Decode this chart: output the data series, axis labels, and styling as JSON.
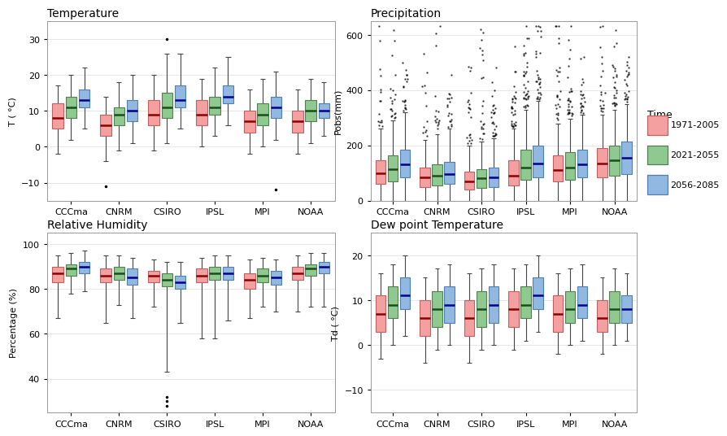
{
  "models": [
    "CCCma",
    "CNRM",
    "CSIRO",
    "IPSL",
    "MPI",
    "NOAA"
  ],
  "time_periods": [
    "1971-2005",
    "2021-2055",
    "2056-2085"
  ],
  "colors": [
    "#F4A0A0",
    "#90C990",
    "#90B8E0"
  ],
  "edge_colors": [
    "#C06060",
    "#508050",
    "#5080B0"
  ],
  "median_colors": [
    "#8B0000",
    "#1a4d1a",
    "#00008B"
  ],
  "temp": {
    "title": "Temperature",
    "ylabel": "T ( °C)",
    "ylim": [
      -15,
      35
    ],
    "yticks": [
      -10,
      0,
      10,
      20,
      30
    ],
    "data": {
      "CCCma": [
        {
          "q1": 5,
          "median": 8,
          "q3": 12,
          "whislo": -2,
          "whishi": 17,
          "fliers": []
        },
        {
          "q1": 8,
          "median": 11,
          "q3": 14,
          "whislo": 2,
          "whishi": 20,
          "fliers": []
        },
        {
          "q1": 11,
          "median": 13,
          "q3": 16,
          "whislo": 5,
          "whishi": 22,
          "fliers": []
        }
      ],
      "CNRM": [
        {
          "q1": 3,
          "median": 6,
          "q3": 9,
          "whislo": -4,
          "whishi": 14,
          "fliers": [
            -11
          ]
        },
        {
          "q1": 6,
          "median": 9,
          "q3": 11,
          "whislo": -1,
          "whishi": 18,
          "fliers": []
        },
        {
          "q1": 7,
          "median": 10,
          "q3": 13,
          "whislo": 1,
          "whishi": 20,
          "fliers": []
        }
      ],
      "CSIRO": [
        {
          "q1": 6,
          "median": 9,
          "q3": 13,
          "whislo": -1,
          "whishi": 20,
          "fliers": []
        },
        {
          "q1": 8,
          "median": 11,
          "q3": 15,
          "whislo": 1,
          "whishi": 26,
          "fliers": [
            30
          ]
        },
        {
          "q1": 11,
          "median": 13,
          "q3": 17,
          "whislo": 5,
          "whishi": 26,
          "fliers": []
        }
      ],
      "IPSL": [
        {
          "q1": 6,
          "median": 9,
          "q3": 13,
          "whislo": 0,
          "whishi": 19,
          "fliers": []
        },
        {
          "q1": 9,
          "median": 11,
          "q3": 14,
          "whislo": 3,
          "whishi": 22,
          "fliers": []
        },
        {
          "q1": 12,
          "median": 14,
          "q3": 17,
          "whislo": 6,
          "whishi": 25,
          "fliers": []
        }
      ],
      "MPI": [
        {
          "q1": 4,
          "median": 7,
          "q3": 10,
          "whislo": -2,
          "whishi": 16,
          "fliers": []
        },
        {
          "q1": 6,
          "median": 9,
          "q3": 12,
          "whislo": 0,
          "whishi": 19,
          "fliers": []
        },
        {
          "q1": 8,
          "median": 11,
          "q3": 14,
          "whislo": 2,
          "whishi": 21,
          "fliers": [
            -12
          ]
        }
      ],
      "NOAA": [
        {
          "q1": 4,
          "median": 7,
          "q3": 10,
          "whislo": -2,
          "whishi": 16,
          "fliers": []
        },
        {
          "q1": 7,
          "median": 10,
          "q3": 13,
          "whislo": 1,
          "whishi": 19,
          "fliers": []
        },
        {
          "q1": 8,
          "median": 10,
          "q3": 12,
          "whislo": 3,
          "whishi": 18,
          "fliers": []
        }
      ]
    }
  },
  "precip": {
    "title": "Precipitation",
    "ylabel": "Pobs(mm)",
    "ylim": [
      0,
      650
    ],
    "yticks": [
      0,
      200,
      400,
      600
    ],
    "data": {
      "CCCma": [
        {
          "q1": 60,
          "median": 100,
          "q3": 145,
          "whislo": 0,
          "whishi": 260,
          "fliers_count": 15
        },
        {
          "q1": 70,
          "median": 115,
          "q3": 165,
          "whislo": 0,
          "whishi": 290,
          "fliers_count": 20
        },
        {
          "q1": 85,
          "median": 130,
          "q3": 185,
          "whislo": 0,
          "whishi": 320,
          "fliers_count": 18
        }
      ],
      "CNRM": [
        {
          "q1": 50,
          "median": 85,
          "q3": 120,
          "whislo": 0,
          "whishi": 220,
          "fliers_count": 12
        },
        {
          "q1": 55,
          "median": 90,
          "q3": 130,
          "whislo": 0,
          "whishi": 240,
          "fliers_count": 15
        },
        {
          "q1": 60,
          "median": 95,
          "q3": 140,
          "whislo": 0,
          "whishi": 260,
          "fliers_count": 18
        }
      ],
      "CSIRO": [
        {
          "q1": 40,
          "median": 70,
          "q3": 105,
          "whislo": 0,
          "whishi": 200,
          "fliers_count": 20
        },
        {
          "q1": 45,
          "median": 80,
          "q3": 115,
          "whislo": 0,
          "whishi": 215,
          "fliers_count": 22
        },
        {
          "q1": 50,
          "median": 85,
          "q3": 120,
          "whislo": 0,
          "whishi": 225,
          "fliers_count": 25
        }
      ],
      "IPSL": [
        {
          "q1": 55,
          "median": 90,
          "q3": 145,
          "whislo": 0,
          "whishi": 260,
          "fliers_count": 30
        },
        {
          "q1": 75,
          "median": 120,
          "q3": 185,
          "whislo": 0,
          "whishi": 330,
          "fliers_count": 35
        },
        {
          "q1": 85,
          "median": 135,
          "q3": 200,
          "whislo": 0,
          "whishi": 360,
          "fliers_count": 30
        }
      ],
      "MPI": [
        {
          "q1": 70,
          "median": 110,
          "q3": 165,
          "whislo": 0,
          "whishi": 280,
          "fliers_count": 25
        },
        {
          "q1": 75,
          "median": 120,
          "q3": 175,
          "whislo": 0,
          "whishi": 295,
          "fliers_count": 28
        },
        {
          "q1": 85,
          "median": 130,
          "q3": 185,
          "whislo": 0,
          "whishi": 310,
          "fliers_count": 22
        }
      ],
      "NOAA": [
        {
          "q1": 85,
          "median": 135,
          "q3": 190,
          "whislo": 0,
          "whishi": 310,
          "fliers_count": 20
        },
        {
          "q1": 90,
          "median": 145,
          "q3": 200,
          "whislo": 0,
          "whishi": 330,
          "fliers_count": 25
        },
        {
          "q1": 95,
          "median": 155,
          "q3": 215,
          "whislo": 0,
          "whishi": 350,
          "fliers_count": 22
        }
      ]
    }
  },
  "humidity": {
    "title": "Relative Humidity",
    "ylabel": "Percentage (%)",
    "ylim": [
      25,
      105
    ],
    "yticks": [
      40,
      60,
      80,
      100
    ],
    "data": {
      "CCCma": [
        {
          "q1": 83,
          "median": 87,
          "q3": 90,
          "whislo": 67,
          "whishi": 95,
          "fliers": []
        },
        {
          "q1": 86,
          "median": 89,
          "q3": 91,
          "whislo": 78,
          "whishi": 96,
          "fliers": []
        },
        {
          "q1": 87,
          "median": 90,
          "q3": 92,
          "whislo": 79,
          "whishi": 97,
          "fliers": []
        }
      ],
      "CNRM": [
        {
          "q1": 83,
          "median": 86,
          "q3": 89,
          "whislo": 65,
          "whishi": 95,
          "fliers": []
        },
        {
          "q1": 84,
          "median": 87,
          "q3": 90,
          "whislo": 73,
          "whishi": 95,
          "fliers": []
        },
        {
          "q1": 82,
          "median": 85,
          "q3": 89,
          "whislo": 67,
          "whishi": 94,
          "fliers": []
        }
      ],
      "CSIRO": [
        {
          "q1": 83,
          "median": 86,
          "q3": 88,
          "whislo": 72,
          "whishi": 93,
          "fliers": []
        },
        {
          "q1": 81,
          "median": 84,
          "q3": 87,
          "whislo": 43,
          "whishi": 92,
          "fliers": [
            28,
            30,
            32
          ]
        },
        {
          "q1": 80,
          "median": 83,
          "q3": 86,
          "whislo": 65,
          "whishi": 92,
          "fliers": []
        }
      ],
      "IPSL": [
        {
          "q1": 83,
          "median": 86,
          "q3": 89,
          "whislo": 58,
          "whishi": 94,
          "fliers": []
        },
        {
          "q1": 84,
          "median": 87,
          "q3": 90,
          "whislo": 58,
          "whishi": 95,
          "fliers": []
        },
        {
          "q1": 84,
          "median": 87,
          "q3": 90,
          "whislo": 66,
          "whishi": 95,
          "fliers": []
        }
      ],
      "MPI": [
        {
          "q1": 80,
          "median": 84,
          "q3": 87,
          "whislo": 67,
          "whishi": 93,
          "fliers": []
        },
        {
          "q1": 83,
          "median": 86,
          "q3": 89,
          "whislo": 72,
          "whishi": 94,
          "fliers": []
        },
        {
          "q1": 82,
          "median": 85,
          "q3": 88,
          "whislo": 70,
          "whishi": 93,
          "fliers": []
        }
      ],
      "NOAA": [
        {
          "q1": 84,
          "median": 87,
          "q3": 90,
          "whislo": 70,
          "whishi": 95,
          "fliers": []
        },
        {
          "q1": 86,
          "median": 89,
          "q3": 91,
          "whislo": 72,
          "whishi": 96,
          "fliers": []
        },
        {
          "q1": 87,
          "median": 90,
          "q3": 92,
          "whislo": 72,
          "whishi": 96,
          "fliers": []
        }
      ]
    }
  },
  "dewpoint": {
    "title": "Dew point Temperature",
    "ylabel": "Td ( °C)",
    "ylim": [
      -15,
      25
    ],
    "yticks": [
      -10,
      0,
      10,
      20
    ],
    "data": {
      "CCCma": [
        {
          "q1": 3,
          "median": 7,
          "q3": 11,
          "whislo": -3,
          "whishi": 16,
          "fliers": []
        },
        {
          "q1": 6,
          "median": 9,
          "q3": 13,
          "whislo": 0,
          "whishi": 18,
          "fliers": []
        },
        {
          "q1": 8,
          "median": 11,
          "q3": 15,
          "whislo": 2,
          "whishi": 20,
          "fliers": []
        }
      ],
      "CNRM": [
        {
          "q1": 2,
          "median": 6,
          "q3": 10,
          "whislo": -4,
          "whishi": 15,
          "fliers": []
        },
        {
          "q1": 4,
          "median": 8,
          "q3": 12,
          "whislo": -1,
          "whishi": 17,
          "fliers": []
        },
        {
          "q1": 5,
          "median": 9,
          "q3": 13,
          "whislo": 0,
          "whishi": 18,
          "fliers": []
        }
      ],
      "CSIRO": [
        {
          "q1": 2,
          "median": 6,
          "q3": 10,
          "whislo": -4,
          "whishi": 16,
          "fliers": []
        },
        {
          "q1": 4,
          "median": 8,
          "q3": 12,
          "whislo": -1,
          "whishi": 17,
          "fliers": []
        },
        {
          "q1": 5,
          "median": 9,
          "q3": 13,
          "whislo": 0,
          "whishi": 18,
          "fliers": []
        }
      ],
      "IPSL": [
        {
          "q1": 4,
          "median": 8,
          "q3": 12,
          "whislo": -1,
          "whishi": 17,
          "fliers": []
        },
        {
          "q1": 6,
          "median": 9,
          "q3": 13,
          "whislo": 1,
          "whishi": 18,
          "fliers": []
        },
        {
          "q1": 8,
          "median": 11,
          "q3": 15,
          "whislo": 3,
          "whishi": 20,
          "fliers": []
        }
      ],
      "MPI": [
        {
          "q1": 3,
          "median": 7,
          "q3": 11,
          "whislo": -2,
          "whishi": 16,
          "fliers": []
        },
        {
          "q1": 5,
          "median": 8,
          "q3": 12,
          "whislo": 0,
          "whishi": 17,
          "fliers": []
        },
        {
          "q1": 6,
          "median": 9,
          "q3": 13,
          "whislo": 1,
          "whishi": 18,
          "fliers": []
        }
      ],
      "NOAA": [
        {
          "q1": 3,
          "median": 6,
          "q3": 10,
          "whislo": -2,
          "whishi": 15,
          "fliers": []
        },
        {
          "q1": 5,
          "median": 8,
          "q3": 12,
          "whislo": 0,
          "whishi": 17,
          "fliers": []
        },
        {
          "q1": 5,
          "median": 8,
          "q3": 11,
          "whislo": 1,
          "whishi": 16,
          "fliers": []
        }
      ]
    }
  },
  "legend_title": "Time",
  "background_color": "#ffffff",
  "grid_color": "#dddddd"
}
